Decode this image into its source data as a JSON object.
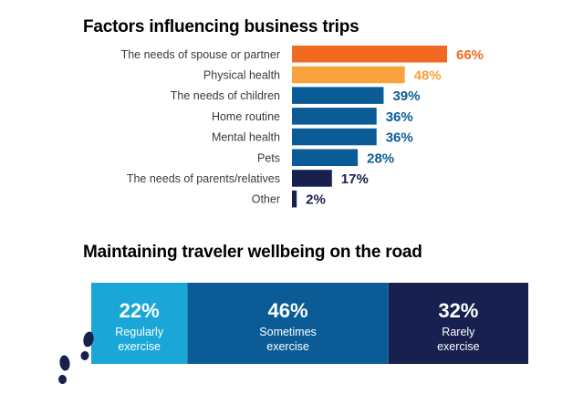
{
  "colors": {
    "orange": "#f26a21",
    "light_orange": "#f7a23c",
    "blue": "#0b5c96",
    "navy": "#17204f",
    "cyan": "#1aa7d8",
    "label_gray": "#3a3a3a"
  },
  "chart_data": [
    {
      "type": "bar",
      "orientation": "horizontal",
      "title": "Factors influencing business trips",
      "categories": [
        "The needs of spouse or partner",
        "Physical health",
        "The needs of children",
        "Home routine",
        "Mental health",
        "Pets",
        "The needs of parents/relatives",
        "Other"
      ],
      "values": [
        66,
        48,
        39,
        36,
        36,
        28,
        17,
        2
      ],
      "value_labels": [
        "66%",
        "48%",
        "39%",
        "36%",
        "36%",
        "28%",
        "17%",
        "2%"
      ],
      "bar_colors": [
        "#f26a21",
        "#f7a23c",
        "#0b5c96",
        "#0b5c96",
        "#0b5c96",
        "#0b5c96",
        "#17204f",
        "#17204f"
      ],
      "xlim": [
        0,
        66
      ],
      "grid": false,
      "legend": "none"
    },
    {
      "type": "bar",
      "orientation": "horizontal",
      "stacked": true,
      "title": "Maintaining traveler wellbeing on the road",
      "segments": [
        {
          "value": 22,
          "value_label": "22%",
          "label_line1": "Regularly",
          "label_line2": "exercise",
          "color": "#1aa7d8"
        },
        {
          "value": 46,
          "value_label": "46%",
          "label_line1": "Sometimes",
          "label_line2": "exercise",
          "color": "#0b5c96"
        },
        {
          "value": 32,
          "value_label": "32%",
          "label_line1": "Rarely",
          "label_line2": "exercise",
          "color": "#17204f"
        }
      ],
      "total": 100,
      "grid": false,
      "legend": "none"
    }
  ],
  "icons": {
    "decoration": "footprints-icon"
  }
}
